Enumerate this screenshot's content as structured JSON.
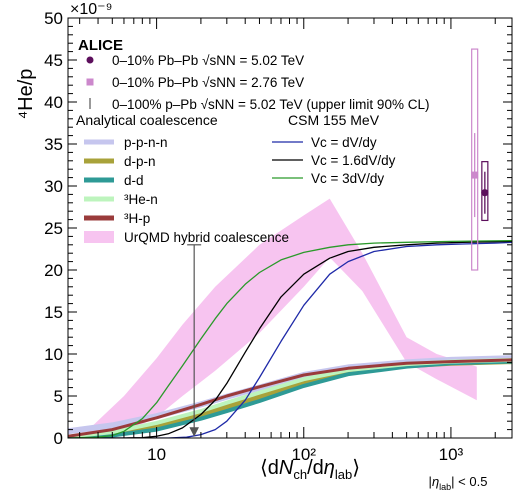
{
  "chart_data": {
    "type": "line",
    "xscale": "log",
    "xlim": [
      2.5,
      2600
    ],
    "ylim": [
      0,
      50
    ],
    "y_multiplier_label": "×10⁻⁹",
    "ylabel": "⁴He/p",
    "xlabel": "⟨dN_ch/dη_lab⟩ |η_lab| < 0.5",
    "x_ticks": [
      10,
      100,
      1000
    ],
    "x_tick_labels": [
      "10",
      "10²",
      "10³"
    ],
    "y_ticks": [
      0,
      5,
      10,
      15,
      20,
      25,
      30,
      35,
      40,
      45,
      50
    ],
    "y_tick_labels": [
      "0",
      "5",
      "10",
      "15",
      "20",
      "25",
      "30",
      "35",
      "40",
      "45",
      "50"
    ],
    "grid": false,
    "experiment_label": "ALICE",
    "data_legend": [
      {
        "text": "0–10% Pb–Pb √sNN = 5.02 TeV",
        "marker": "circle",
        "color": "#5c0f5c"
      },
      {
        "text": "0–10% Pb–Pb √sNN = 2.76 TeV",
        "marker": "square",
        "color": "#cc88cc"
      },
      {
        "text": "0–100% p–Pb √sNN = 5.02 TeV (upper limit 90% CL)",
        "marker": "bar",
        "color": "#555555"
      }
    ],
    "coalescence_legend_title": "Analytical coalescence",
    "coalescence_legend": [
      {
        "text": "p-p-n-n",
        "color": "#c6c6ee"
      },
      {
        "text": "d-p-n",
        "color": "#a8a23a"
      },
      {
        "text": "d-d",
        "color": "#2e9a96"
      },
      {
        "text": "³He-n",
        "color": "#bdf4bd"
      },
      {
        "text": "³H-p",
        "color": "#9a3b3b"
      }
    ],
    "urqmd_legend": {
      "text": "UrQMD hybrid coalescence",
      "color": "#f7c4f0"
    },
    "csm_legend_title": "CSM 155 MeV",
    "csm_legend": [
      {
        "text": "Vc = dV/dy",
        "color": "#1f2aa8"
      },
      {
        "text": "Vc = 1.6dV/dy",
        "color": "#000000"
      },
      {
        "text": "Vc = 3dV/dy",
        "color": "#2a9a2a"
      }
    ],
    "series": [
      {
        "name": "Vc = dV/dy",
        "color": "#1f2aa8",
        "x": [
          2.5,
          8,
          12,
          16,
          20,
          25,
          30,
          40,
          50,
          70,
          100,
          150,
          200,
          300,
          500,
          800,
          1200,
          2000,
          2600
        ],
        "y": [
          0,
          0,
          0,
          0.1,
          0.4,
          1.0,
          2.0,
          4.5,
          7.2,
          11.5,
          15.8,
          19.5,
          21.0,
          22.2,
          22.8,
          23.0,
          23.1,
          23.2,
          23.3
        ]
      },
      {
        "name": "Vc = 1.6dV/dy",
        "color": "#000000",
        "x": [
          2.5,
          6,
          8,
          10,
          12,
          15,
          20,
          25,
          30,
          40,
          50,
          70,
          100,
          150,
          200,
          300,
          500,
          800,
          1200,
          2600
        ],
        "y": [
          0,
          0,
          0.05,
          0.2,
          0.5,
          1.2,
          2.8,
          4.5,
          6.5,
          10.2,
          13.0,
          16.8,
          19.5,
          21.4,
          22.2,
          22.7,
          23.0,
          23.2,
          23.3,
          23.4
        ]
      },
      {
        "name": "Vc = 3dV/dy",
        "color": "#2a9a2a",
        "x": [
          2.5,
          4,
          5,
          6,
          8,
          10,
          12,
          15,
          20,
          25,
          30,
          40,
          50,
          70,
          100,
          150,
          200,
          300,
          500,
          1000,
          2600
        ],
        "y": [
          0,
          0.1,
          0.3,
          0.8,
          2.3,
          4.2,
          6.2,
          8.6,
          11.8,
          14.2,
          16.0,
          18.3,
          19.7,
          21.2,
          22.1,
          22.7,
          23.0,
          23.2,
          23.3,
          23.4,
          23.5
        ]
      },
      {
        "name": "p-p-n-n",
        "color": "#c6c6ee",
        "width": 6,
        "x": [
          2.5,
          5,
          10,
          20,
          30,
          50,
          100,
          200,
          500,
          1000,
          2600
        ],
        "y": [
          0.8,
          1.5,
          2.6,
          4.0,
          4.9,
          6.0,
          7.5,
          8.4,
          9.0,
          9.3,
          9.5
        ]
      },
      {
        "name": "d-p-n",
        "color": "#a8a23a",
        "width": 5,
        "x": [
          2.5,
          5,
          10,
          20,
          30,
          50,
          100,
          200,
          500,
          1000,
          2600
        ],
        "y": [
          0.1,
          0.5,
          1.4,
          2.8,
          3.7,
          4.9,
          6.6,
          7.8,
          8.6,
          8.9,
          9.1
        ]
      },
      {
        "name": "d-d",
        "color": "#2e9a96",
        "width": 4,
        "x": [
          2.5,
          5,
          10,
          20,
          30,
          50,
          100,
          200,
          500,
          1000,
          2600
        ],
        "y": [
          0.05,
          0.3,
          1.0,
          2.3,
          3.2,
          4.4,
          6.2,
          7.6,
          8.5,
          8.9,
          9.1
        ]
      },
      {
        "name": "³He-n",
        "color": "#bdf4bd",
        "width": 4,
        "x": [
          2.5,
          5,
          10,
          20,
          30,
          50,
          100,
          200,
          500,
          1000,
          2600
        ],
        "y": [
          0.15,
          0.7,
          1.8,
          3.2,
          4.2,
          5.4,
          7.0,
          8.1,
          8.8,
          9.1,
          9.3
        ]
      },
      {
        "name": "³H-p",
        "color": "#9a3b3b",
        "width": 3,
        "x": [
          2.5,
          5,
          10,
          20,
          30,
          50,
          100,
          200,
          500,
          1000,
          2600
        ],
        "y": [
          0.2,
          1.0,
          2.4,
          4.0,
          5.0,
          6.1,
          7.5,
          8.3,
          8.9,
          9.1,
          9.3
        ]
      }
    ],
    "urqmd_band": {
      "x": [
        3,
        6,
        10,
        15,
        25,
        50,
        100,
        150,
        250,
        500,
        800,
        1500
      ],
      "upper": [
        0,
        5,
        9.5,
        13.5,
        18,
        23,
        26.5,
        28.5,
        22,
        12,
        10,
        8.5
      ],
      "lower": [
        0,
        0.5,
        2.5,
        5,
        8,
        12.5,
        18,
        21.5,
        17.5,
        9,
        7,
        4.5
      ]
    },
    "data_points": [
      {
        "name": "0–10% Pb–Pb 5.02 TeV",
        "x": 1700,
        "y": 29.2,
        "stat_err": 2.5,
        "sys_low": 3.3,
        "sys_high": 3.7,
        "marker": "circle",
        "color": "#5c0f5c"
      },
      {
        "name": "0–10% Pb–Pb 2.76 TeV",
        "x": 1450,
        "y": 31.3,
        "stat_err": 5.0,
        "sys_low": 11.3,
        "sys_high": 15.0,
        "marker": "square",
        "color": "#cc88cc"
      },
      {
        "name": "0–100% p–Pb 5.02 TeV upper limit",
        "x": 18,
        "y": 23.0,
        "marker": "upper-limit-arrow",
        "color": "#555555"
      }
    ]
  }
}
